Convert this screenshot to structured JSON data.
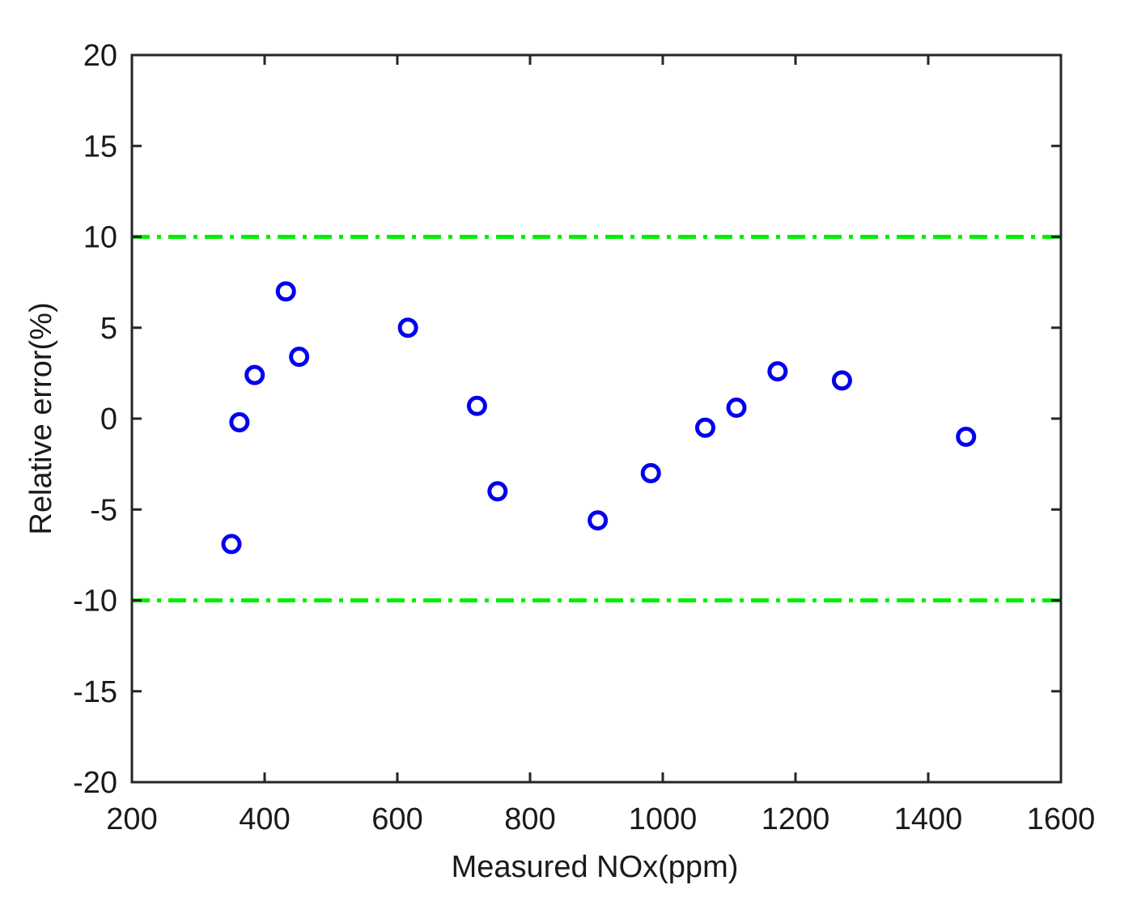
{
  "chart_data": {
    "type": "scatter",
    "title": "",
    "xlabel": "Measured NOx(ppm)",
    "ylabel": "Relative error(%)",
    "xlim": [
      200,
      1600
    ],
    "ylim": [
      -20,
      20
    ],
    "x_ticks": [
      200,
      400,
      600,
      800,
      1000,
      1200,
      1400,
      1600
    ],
    "y_ticks": [
      -20,
      -15,
      -10,
      -5,
      0,
      5,
      10,
      15,
      20
    ],
    "grid": false,
    "legend": "none",
    "series": [
      {
        "marker": "open-circle",
        "color": "#0000ee",
        "points": [
          {
            "x": 350,
            "y": -6.9
          },
          {
            "x": 362,
            "y": -0.2
          },
          {
            "x": 385,
            "y": 2.4
          },
          {
            "x": 432,
            "y": 7.0
          },
          {
            "x": 452,
            "y": 3.4
          },
          {
            "x": 616,
            "y": 5.0
          },
          {
            "x": 720,
            "y": 0.7
          },
          {
            "x": 751,
            "y": -4.0
          },
          {
            "x": 902,
            "y": -5.6
          },
          {
            "x": 982,
            "y": -3.0
          },
          {
            "x": 1064,
            "y": -0.5
          },
          {
            "x": 1111,
            "y": 0.6
          },
          {
            "x": 1173,
            "y": 2.6
          },
          {
            "x": 1270,
            "y": 2.1
          },
          {
            "x": 1457,
            "y": -1.0
          }
        ]
      }
    ],
    "reference_lines": [
      {
        "y": 10,
        "color": "#00ee00",
        "style": "dash-dot"
      },
      {
        "y": -10,
        "color": "#00ee00",
        "style": "dash-dot"
      }
    ]
  }
}
